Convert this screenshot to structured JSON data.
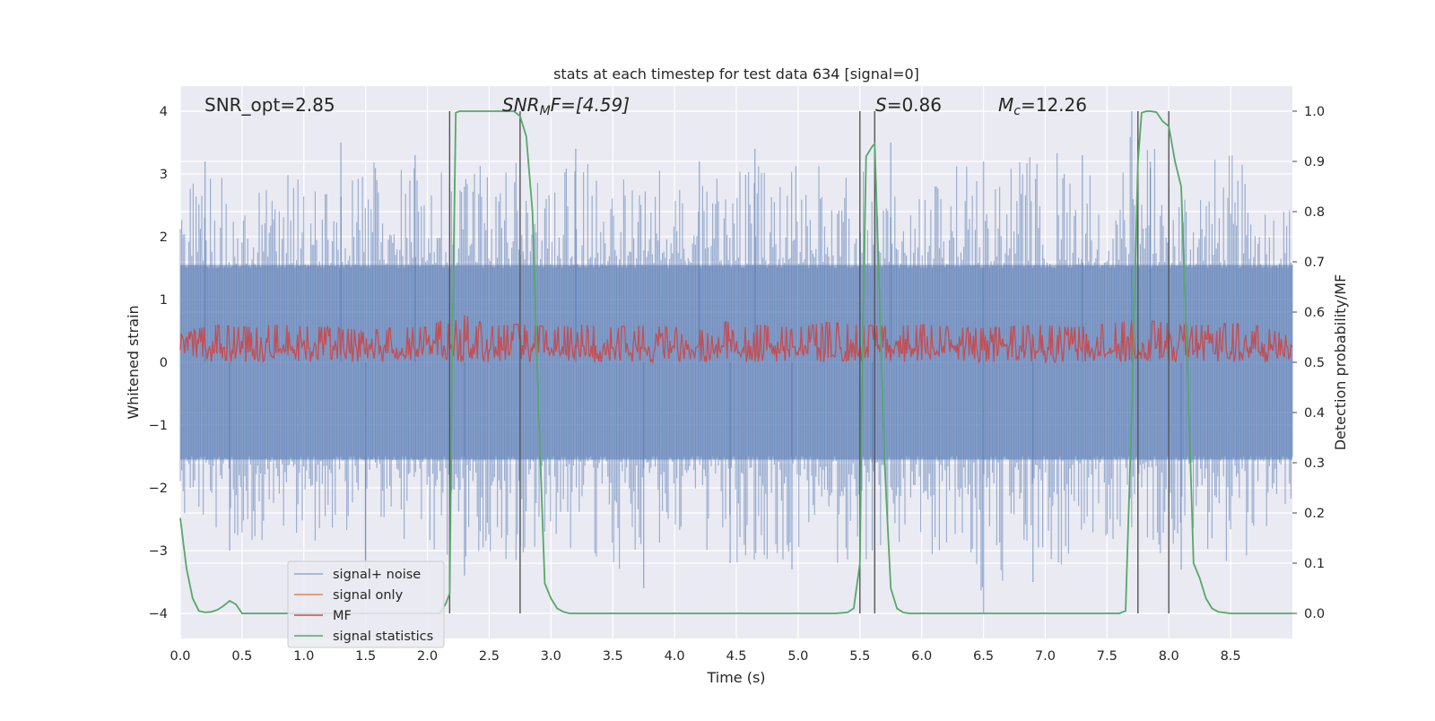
{
  "chart_data": {
    "type": "line",
    "title": "stats at each timestep for test data 634 [signal=0]",
    "xlabel": "Time (s)",
    "ylabel": "Whitened strain",
    "y2label": "Detection probability/MF",
    "xlim": [
      0,
      9
    ],
    "ylim": [
      -4.4,
      4.4
    ],
    "y2lim": [
      -0.05,
      1.05
    ],
    "x_ticks": [
      "0.0",
      "0.5",
      "1.0",
      "1.5",
      "2.0",
      "2.5",
      "3.0",
      "3.5",
      "4.0",
      "4.5",
      "5.0",
      "5.5",
      "6.0",
      "6.5",
      "7.0",
      "7.5",
      "8.0",
      "8.5"
    ],
    "y_ticks": [
      "4",
      "3",
      "2",
      "1",
      "0",
      "−1",
      "−2",
      "−3",
      "−4"
    ],
    "y2_ticks": [
      "1.0",
      "0.9",
      "0.8",
      "0.7",
      "0.6",
      "0.5",
      "0.4",
      "0.3",
      "0.2",
      "0.1",
      "0.0"
    ],
    "grid": true,
    "legend_position": "lower-left",
    "annotations": {
      "snr_opt": "SNR_opt=2.85",
      "snr_mf_main": "SNR",
      "snr_mf_sub": "M",
      "snr_mf_rest": "F=[4.59]",
      "s_main": "S",
      "s_rest": "=0.86",
      "mc_main": "M",
      "mc_sub": "c",
      "mc_rest": "=12.26"
    },
    "noise_envelope": {
      "x": [
        0.0,
        0.25,
        0.5,
        0.75,
        1.0,
        1.25,
        1.5,
        1.75,
        2.0,
        2.25,
        2.5,
        2.75,
        3.0,
        3.25,
        3.5,
        3.75,
        4.0,
        4.25,
        4.5,
        4.75,
        5.0,
        5.25,
        5.5,
        5.75,
        6.0,
        6.25,
        6.5,
        6.75,
        7.0,
        7.25,
        7.5,
        7.75,
        8.0,
        8.25,
        8.5,
        8.75,
        9.0
      ],
      "upper": [
        2.6,
        3.2,
        2.5,
        2.9,
        3.3,
        2.7,
        3.2,
        3.4,
        2.9,
        3.2,
        3.1,
        3.3,
        2.8,
        3.4,
        3.2,
        3.2,
        3.1,
        3.2,
        3.3,
        3.2,
        3.6,
        2.9,
        3.2,
        3.0,
        3.3,
        3.2,
        3.4,
        3.2,
        3.6,
        3.2,
        3.1,
        4.0,
        3.1,
        3.3,
        3.4,
        2.8,
        2.6
      ],
      "lower": [
        -2.4,
        -2.7,
        -2.9,
        -2.8,
        -3.0,
        -2.7,
        -3.2,
        -2.9,
        -3.2,
        -3.4,
        -3.0,
        -3.3,
        -2.7,
        -3.2,
        -3.5,
        -2.9,
        -3.0,
        -3.1,
        -3.2,
        -3.3,
        -3.0,
        -3.4,
        -3.3,
        -3.0,
        -3.2,
        -2.9,
        -4.0,
        -3.5,
        -3.3,
        -3.2,
        -3.0,
        -3.0,
        -3.1,
        -2.9,
        -3.3,
        -3.0,
        -2.2
      ],
      "spikes": [
        [
          0.2,
          3.2
        ],
        [
          0.4,
          -3.0
        ],
        [
          1.3,
          3.5
        ],
        [
          1.5,
          -3.3
        ],
        [
          1.9,
          3.3
        ],
        [
          2.3,
          -3.4
        ],
        [
          3.2,
          3.4
        ],
        [
          3.75,
          -3.6
        ],
        [
          4.2,
          3.2
        ],
        [
          4.45,
          -3.2
        ],
        [
          4.65,
          3.4
        ],
        [
          4.95,
          -3.3
        ],
        [
          5.75,
          3.5
        ],
        [
          5.6,
          -3.0
        ],
        [
          6.5,
          3.2
        ],
        [
          6.5,
          -4.0
        ],
        [
          6.9,
          -3.5
        ],
        [
          7.3,
          3.3
        ],
        [
          7.7,
          4.0
        ],
        [
          7.85,
          3.2
        ],
        [
          8.1,
          -3.3
        ]
      ]
    },
    "mf": {
      "x": [
        0.0,
        0.25,
        0.5,
        0.75,
        1.0,
        1.25,
        1.5,
        1.75,
        2.0,
        2.25,
        2.5,
        2.75,
        3.0,
        3.25,
        3.5,
        3.75,
        4.0,
        4.25,
        4.5,
        4.75,
        5.0,
        5.25,
        5.5,
        5.75,
        6.0,
        6.25,
        6.5,
        6.75,
        7.0,
        7.25,
        7.5,
        7.75,
        8.0,
        8.25,
        8.5,
        8.75,
        9.0
      ],
      "upper": [
        0.55,
        0.75,
        0.7,
        0.75,
        0.72,
        0.7,
        0.62,
        0.7,
        0.7,
        1.0,
        0.72,
        0.76,
        0.7,
        0.75,
        0.7,
        0.73,
        0.7,
        0.78,
        0.82,
        0.72,
        0.7,
        0.8,
        0.74,
        0.72,
        0.75,
        0.7,
        0.68,
        0.72,
        0.74,
        0.7,
        0.76,
        0.85,
        0.78,
        0.74,
        0.78,
        0.72,
        0.5
      ],
      "lower": [
        0.05,
        0.04,
        0.03,
        0.03,
        0.04,
        0.03,
        0.04,
        0.03,
        0.04,
        0.05,
        0.03,
        0.04,
        0.03,
        0.04,
        0.03,
        0.04,
        0.03,
        0.04,
        0.03,
        0.04,
        0.03,
        0.04,
        0.03,
        0.04,
        0.03,
        0.04,
        0.03,
        0.04,
        0.03,
        0.04,
        0.03,
        0.04,
        0.03,
        0.04,
        0.03,
        0.04,
        0.05
      ]
    },
    "vertical_lines": [
      2.18,
      2.75,
      5.5,
      5.62,
      7.75,
      8.0
    ],
    "series": [
      {
        "name": "signal+ noise",
        "color": "#4c72b0",
        "x": [],
        "y": []
      },
      {
        "name": "signal only",
        "color": "#dd8452",
        "x": [],
        "y": []
      },
      {
        "name": "MF",
        "color": "#c44e52",
        "x": [],
        "y": []
      },
      {
        "name": "signal statistics",
        "color": "#55a868",
        "axis": "right",
        "x": [
          0.0,
          0.05,
          0.1,
          0.15,
          0.2,
          0.25,
          0.3,
          0.35,
          0.4,
          0.45,
          0.5,
          0.6,
          0.8,
          1.0,
          1.5,
          2.0,
          2.1,
          2.15,
          2.18,
          2.2,
          2.23,
          2.26,
          2.3,
          2.4,
          2.5,
          2.6,
          2.7,
          2.75,
          2.8,
          2.85,
          2.9,
          2.95,
          3.0,
          3.05,
          3.1,
          3.15,
          3.2,
          3.4,
          3.6,
          4.0,
          4.5,
          5.0,
          5.3,
          5.4,
          5.45,
          5.5,
          5.52,
          5.55,
          5.6,
          5.62,
          5.65,
          5.7,
          5.75,
          5.8,
          5.85,
          5.9,
          6.0,
          6.5,
          7.0,
          7.5,
          7.6,
          7.65,
          7.7,
          7.75,
          7.78,
          7.82,
          7.85,
          7.9,
          7.95,
          8.0,
          8.05,
          8.1,
          8.15,
          8.2,
          8.25,
          8.3,
          8.35,
          8.4,
          8.5,
          8.6,
          8.75,
          9.0
        ],
        "y": [
          0.19,
          0.09,
          0.03,
          0.005,
          0.002,
          0.003,
          0.007,
          0.015,
          0.025,
          0.018,
          0.0,
          0.0,
          0.0,
          0.0,
          0.0,
          0.0,
          0.0,
          0.02,
          0.04,
          0.5,
          0.997,
          1.0,
          1.0,
          1.0,
          1.0,
          1.0,
          1.0,
          0.99,
          0.95,
          0.8,
          0.4,
          0.06,
          0.03,
          0.01,
          0.003,
          0.0,
          0.0,
          0.0,
          0.0,
          0.0,
          0.0,
          0.0,
          0.0,
          0.002,
          0.01,
          0.1,
          0.5,
          0.91,
          0.93,
          0.935,
          0.7,
          0.3,
          0.05,
          0.01,
          0.002,
          0.0,
          0.0,
          0.0,
          0.0,
          0.0,
          0.0,
          0.005,
          0.4,
          0.9,
          0.997,
          1.0,
          1.0,
          0.998,
          0.98,
          0.97,
          0.9,
          0.85,
          0.5,
          0.1,
          0.07,
          0.03,
          0.01,
          0.003,
          0.0,
          0.0,
          0.0,
          0.0
        ]
      }
    ]
  }
}
